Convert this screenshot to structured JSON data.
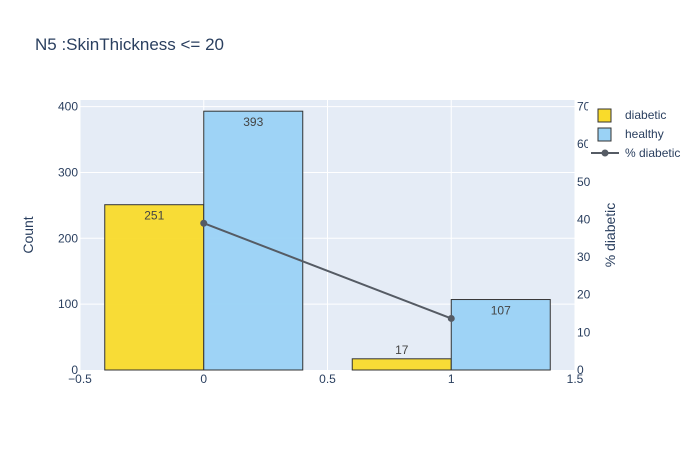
{
  "chart_data": {
    "type": "bar",
    "title": "N5 :SkinThickness <= 20",
    "ylabel": "Count",
    "y2label": "% diabetic",
    "x": [
      0,
      1
    ],
    "xlim": [
      -0.5,
      1.5
    ],
    "ylim": [
      0,
      410
    ],
    "y2lim": [
      0,
      71.75
    ],
    "xticks": [
      -0.5,
      0,
      0.5,
      1,
      1.5
    ],
    "xtick_labels": [
      "−0.5",
      "0",
      "0.5",
      "1",
      "1.5"
    ],
    "yticks": [
      0,
      100,
      200,
      300,
      400
    ],
    "y2ticks": [
      0,
      10,
      20,
      30,
      40,
      50,
      60,
      70
    ],
    "y2tick_labels": [
      "0",
      "10",
      "20",
      "30",
      "40",
      "50",
      "60",
      "70"
    ],
    "bar_width": 0.4,
    "grid": true,
    "legend_position": "top-right",
    "series": [
      {
        "name": "diabetic",
        "kind": "bar",
        "offset": -0.2,
        "values": [
          251,
          17
        ],
        "labels": [
          "251",
          "17"
        ],
        "color": "#F9DB2B"
      },
      {
        "name": "healthy",
        "kind": "bar",
        "offset": 0.2,
        "values": [
          393,
          107
        ],
        "labels": [
          "393",
          "107"
        ],
        "color": "#9AD2F5"
      },
      {
        "name": "% diabetic",
        "kind": "line",
        "axis": "y2",
        "values": [
          39,
          13.7
        ],
        "color": "#555b64"
      }
    ],
    "colors": {
      "plot_bg": "#E5ECF6",
      "grid": "#ffffff",
      "bar_edge": "#333333",
      "text": "#2a3f5f"
    }
  }
}
